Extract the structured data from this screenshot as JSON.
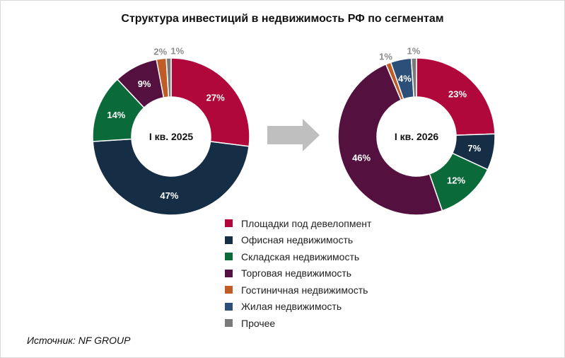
{
  "title": "Структура инвестиций в недвижимость РФ по сегментам",
  "source": "Источник: NF GROUP",
  "colors": {
    "Площадки под девелопмент": "#b0083a",
    "Офисная недвижимость": "#152e46",
    "Складская недвижимость": "#0b6a3a",
    "Торговая недвижимость": "#54103e",
    "Гостиничная недвижимость": "#c05c26",
    "Жилая недвижимость": "#2b4f78",
    "Прочее": "#7a7a7a"
  },
  "arrow_color": "#bfbfbf",
  "legend": [
    "Площадки под девелопмент",
    "Офисная недвижимость",
    "Складская недвижимость",
    "Торговая недвижимость",
    "Гостиничная недвижимость",
    "Жилая недвижимость",
    "Прочее"
  ],
  "chart_data": [
    {
      "type": "pie",
      "center_label": "I кв. 2025",
      "slices": [
        {
          "category": "Площадки под девелопмент",
          "value": 27,
          "label": "27%"
        },
        {
          "category": "Офисная недвижимость",
          "value": 47,
          "label": "47%"
        },
        {
          "category": "Складская недвижимость",
          "value": 14,
          "label": "14%"
        },
        {
          "category": "Торговая недвижимость",
          "value": 9,
          "label": "9%"
        },
        {
          "category": "Гостиничная недвижимость",
          "value": 2,
          "label": "2%"
        },
        {
          "category": "Прочее",
          "value": 1,
          "label": "1%"
        }
      ]
    },
    {
      "type": "pie",
      "center_label": "I кв. 2026",
      "slices": [
        {
          "category": "Площадки под девелопмент",
          "value": 23,
          "label": "23%"
        },
        {
          "category": "Офисная недвижимость",
          "value": 7,
          "label": "7%"
        },
        {
          "category": "Складская недвижимость",
          "value": 12,
          "label": "12%"
        },
        {
          "category": "Торговая недвижимость",
          "value": 46,
          "label": "46%"
        },
        {
          "category": "Гостиничная недвижимость",
          "value": 1,
          "label": "1%"
        },
        {
          "category": "Жилая недвижимость",
          "value": 4,
          "label": "4%"
        },
        {
          "category": "Прочее",
          "value": 1,
          "label": "1%"
        }
      ]
    }
  ]
}
